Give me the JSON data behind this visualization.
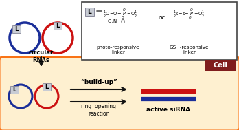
{
  "bg_color": "#ffffff",
  "cell_bg": "#fef0d0",
  "cell_border": "#f97316",
  "cell_label_bg": "#7f1d1d",
  "cell_label_color": "#ffffff",
  "blue_color": "#1a2e99",
  "red_color": "#cc1111",
  "label_box_color": "#c8ccd4",
  "label_box_border": "#888899",
  "arrow_color": "#111111",
  "linker_box_border": "#444444",
  "photo_label": "photo-responsive\nlinker",
  "gsh_label": "GSH-responsive\nlinker",
  "circular_rnas_label": "circular\nRNAs",
  "buildup_label": "“build-up”",
  "ring_label": "ring  opening\nreaction",
  "active_label": "active siRNA",
  "cell_text": "Cell",
  "l_label": "L",
  "linker_eq": "L   =",
  "or_text": "or"
}
